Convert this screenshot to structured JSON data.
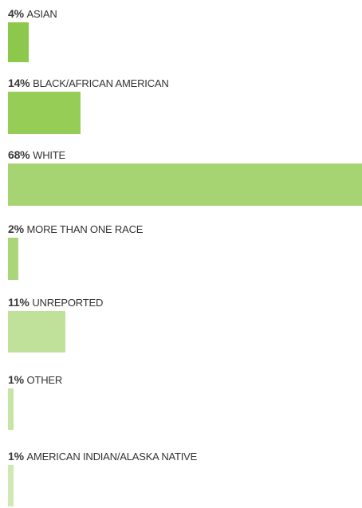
{
  "chart_data": {
    "type": "bar",
    "orientation": "horizontal",
    "title": "",
    "xlabel": "",
    "ylabel": "",
    "categories": [
      "ASIAN",
      "BLACK/AFRICAN AMERICAN",
      "WHITE",
      "MORE THAN ONE RACE",
      "UNREPORTED",
      "OTHER",
      "AMERICAN INDIAN/ALASKA NATIVE"
    ],
    "values": [
      4,
      14,
      68,
      2,
      11,
      1,
      1
    ],
    "value_labels": [
      "4%",
      "14%",
      "68%",
      "2%",
      "11%",
      "1%",
      "1%"
    ],
    "unit": "%",
    "bar_colors": [
      "#8cc84b",
      "#96cd56",
      "#a6d473",
      "#a9d679",
      "#bfe19a",
      "#c6e4a6",
      "#cfe8b4"
    ],
    "grid": false,
    "legend": "none"
  }
}
